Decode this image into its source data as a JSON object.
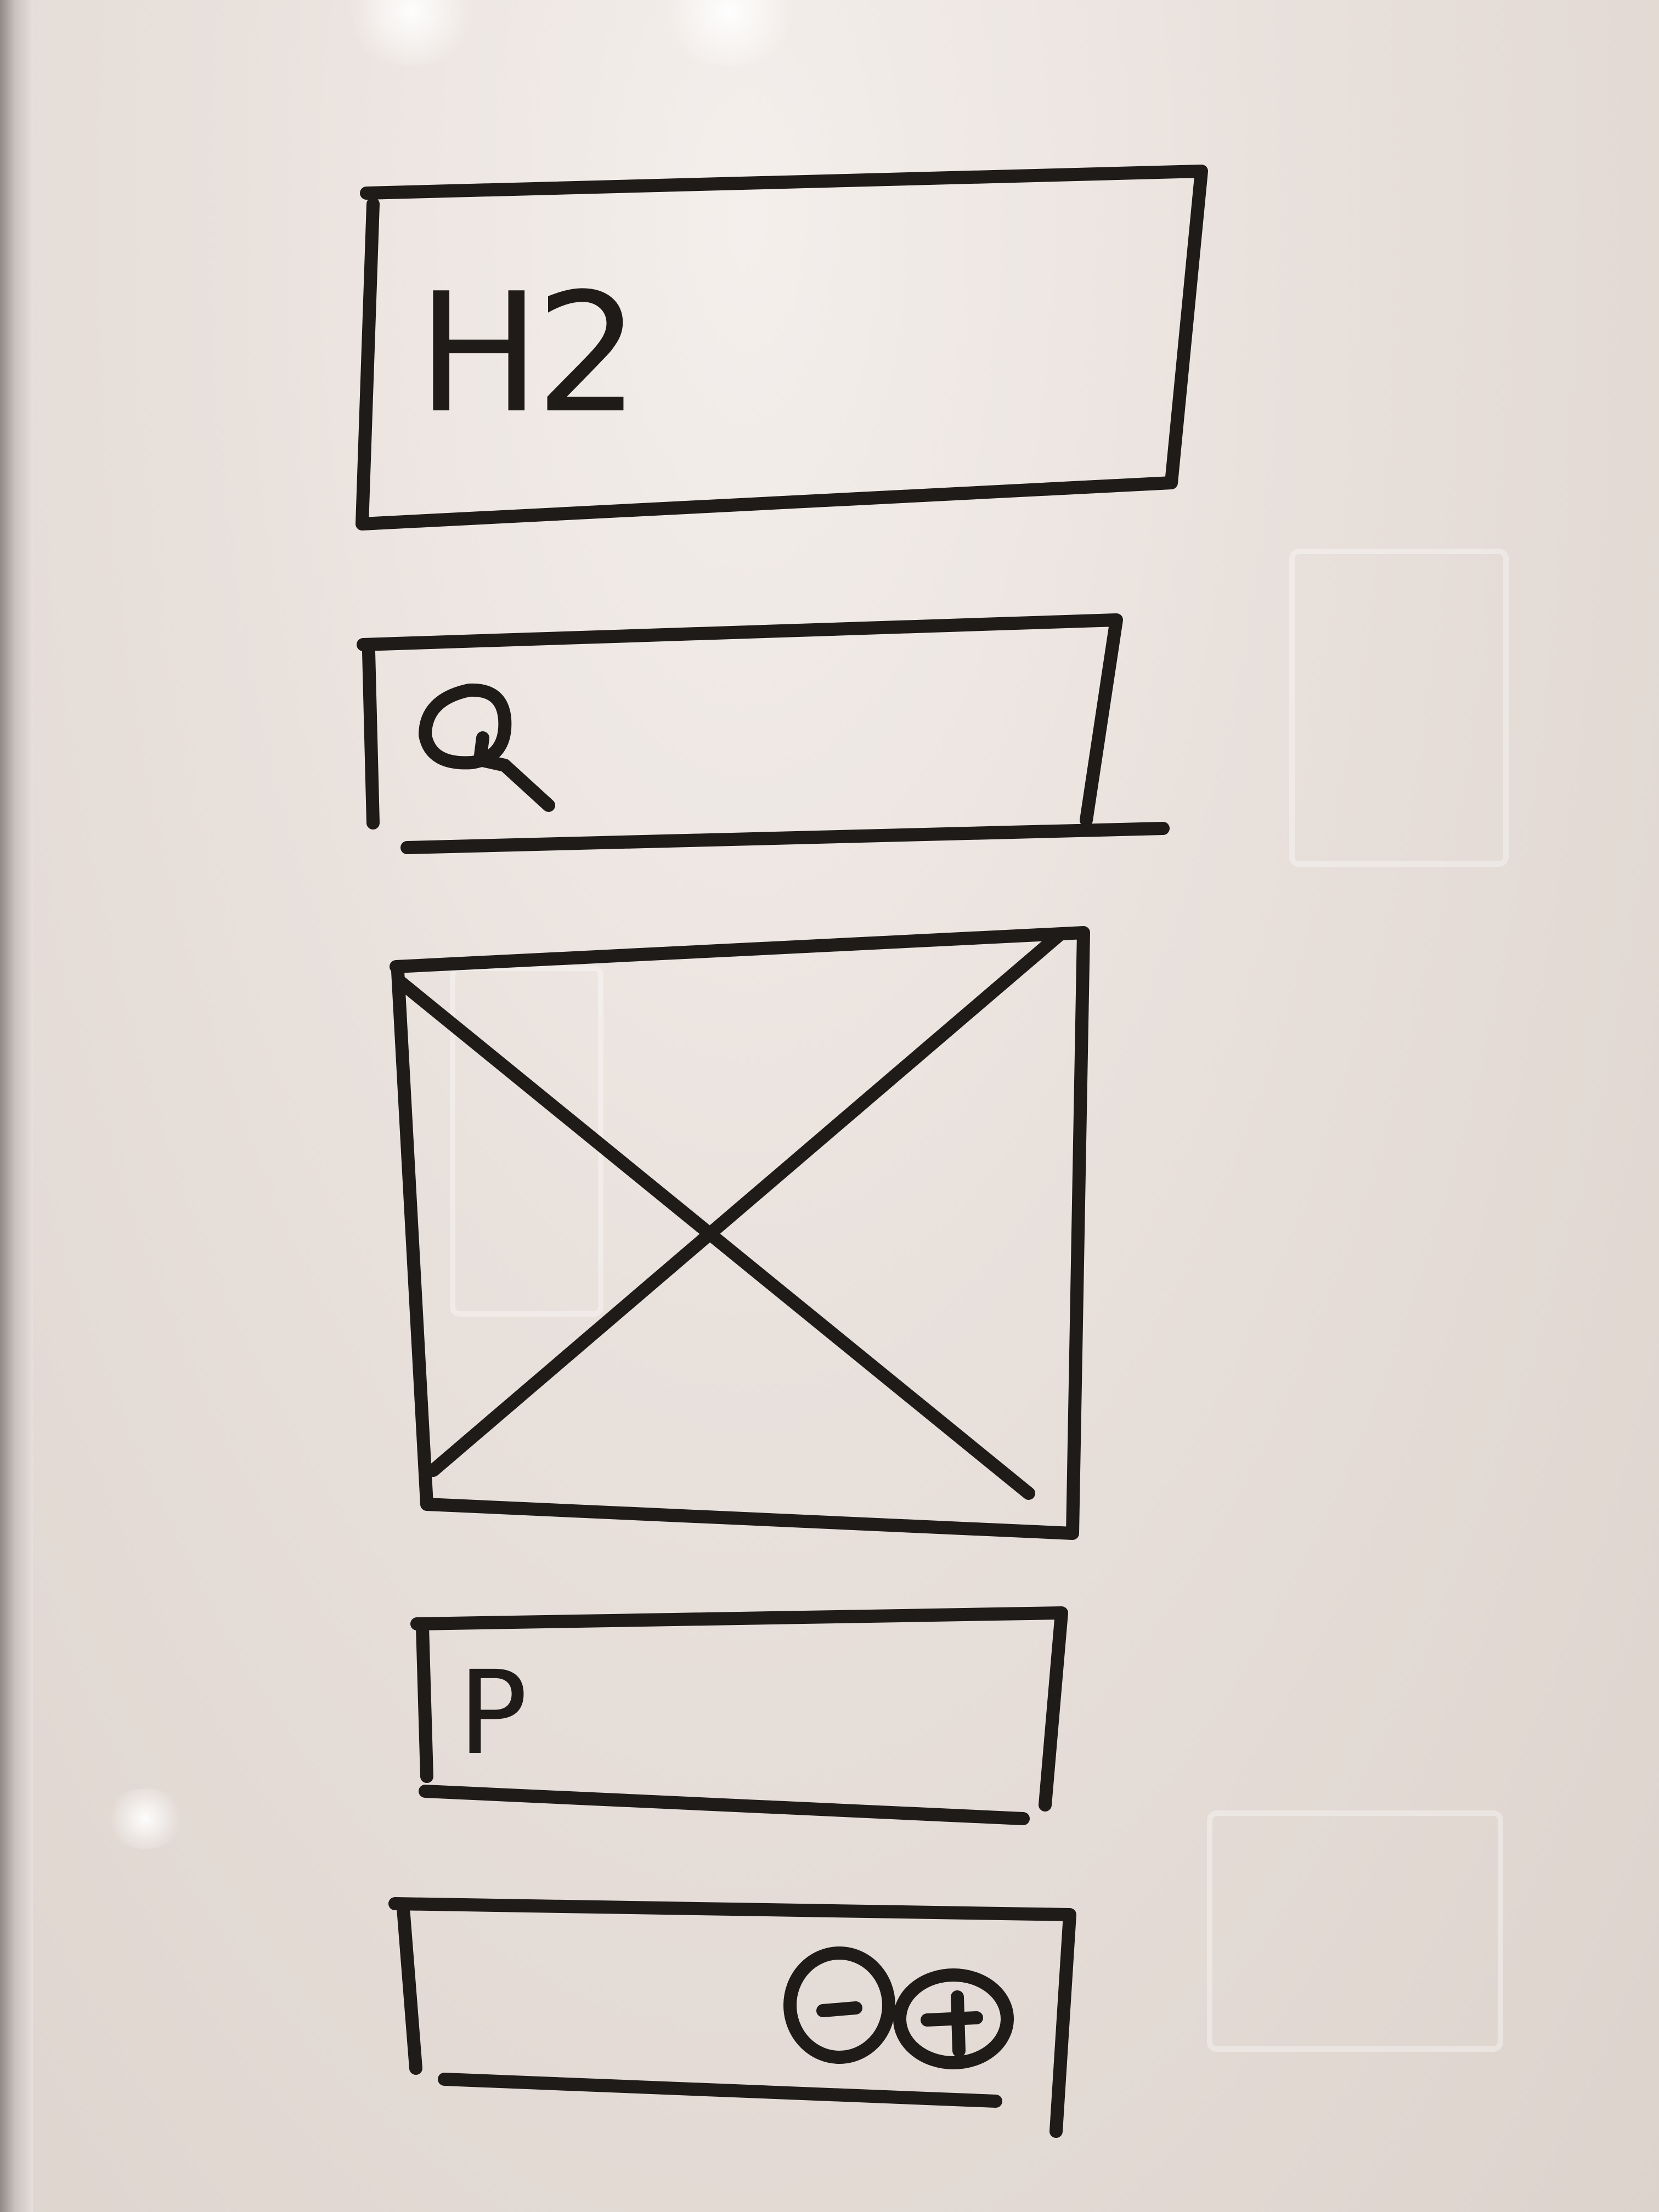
{
  "heading_placeholder": {
    "label": "H2"
  },
  "paragraph_placeholder": {
    "label": "P"
  },
  "search_bar": {
    "icon": "search-icon"
  },
  "image_placeholder": {
    "icon": "image-placeholder-cross"
  },
  "stepper": {
    "minus_icon": "minus-icon",
    "plus_icon": "plus-icon"
  },
  "colors": {
    "marker": "#1f1b19",
    "whiteboard": "#e9e1dc"
  }
}
